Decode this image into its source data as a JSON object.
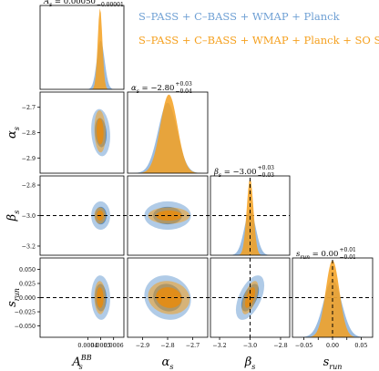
{
  "chart_data": {
    "type": "corner",
    "parameters": [
      {
        "label": "A_s",
        "base": "A",
        "sub": "s",
        "sup": "BB",
        "value_title": "0.00050",
        "err_plus": "+0.00004",
        "err_minus": "−0.00001",
        "range": [
          3e-05,
          0.00068
        ],
        "ticks": [
          0.0004,
          0.0005,
          0.0006
        ],
        "tick_labels": [
          "0.0004",
          "0.0005",
          "0.0006"
        ],
        "fiducial": null
      },
      {
        "label": "α_s",
        "base": "α",
        "sub": "s",
        "sup": "",
        "value_title": "−2.80",
        "err_plus": "+0.03",
        "err_minus": "−0.04",
        "range": [
          -2.96,
          -2.64
        ],
        "ticks": [
          -2.9,
          -2.8,
          -2.7
        ],
        "tick_labels": [
          "−2.9",
          "−2.8",
          "−2.7"
        ],
        "fiducial": null
      },
      {
        "label": "β_s",
        "base": "β",
        "sub": "s",
        "sup": "",
        "value_title": "−3.00",
        "err_plus": "+0.03",
        "err_minus": "−0.03",
        "range": [
          -3.26,
          -2.74
        ],
        "ticks": [
          -3.2,
          -3.0,
          -2.8
        ],
        "tick_labels": [
          "−3.2",
          "−3.0",
          "−2.8"
        ],
        "fiducial": -3.0
      },
      {
        "label": "s_run",
        "base": "s",
        "sub": "run",
        "sup": "",
        "value_title": "0.00",
        "err_plus": "+0.01",
        "err_minus": "−0.01",
        "range": [
          -0.07,
          0.07
        ],
        "ticks": [
          -0.05,
          -0.025,
          0.0,
          0.025,
          0.05
        ],
        "tick_labels": [
          "−0.050",
          "−0.025",
          "0.000",
          "0.025",
          "0.050"
        ],
        "x_tick_labels": [
          "−0.05",
          "",
          "0.00",
          "",
          "0.05"
        ],
        "fiducial": 0.0
      }
    ],
    "title_prefix": "=",
    "series": [
      {
        "name": "S–PASS + C–BASS + WMAP + Planck",
        "color": "#6fa0d4",
        "means": [
          0.0005,
          -2.8,
          -3.0,
          0.0
        ],
        "sigmas": [
          3e-05,
          0.038,
          0.038,
          0.016
        ],
        "corr": {
          "0-1": -0.15,
          "0-2": 0.0,
          "0-3": -0.05,
          "1-2": 0.0,
          "1-3": -0.1,
          "2-3": 0.55
        }
      },
      {
        "name": "S–PASS + C–BASS + WMAP + Planck + SO SAT",
        "color": "#f5a01e",
        "means": [
          0.000495,
          -2.795,
          -3.0,
          0.0
        ],
        "sigmas": [
          1.8e-05,
          0.034,
          0.022,
          0.012
        ],
        "corr": {
          "0-1": -0.1,
          "0-2": 0.0,
          "0-3": -0.05,
          "1-2": 0.0,
          "1-3": -0.1,
          "2-3": 0.6
        }
      }
    ]
  },
  "colors": {
    "blue": "#6fa0d4",
    "blue_inner": "#3a78b8",
    "orange": "#f5a01e",
    "orange_inner": "#f08a00",
    "overlap": "#b5b3aa",
    "fiducial": "#000000"
  },
  "legend": {
    "item1": "S–PASS + C–BASS + WMAP + Planck",
    "item2": "S–PASS + C–BASS + WMAP + Planck + SO SAT"
  }
}
